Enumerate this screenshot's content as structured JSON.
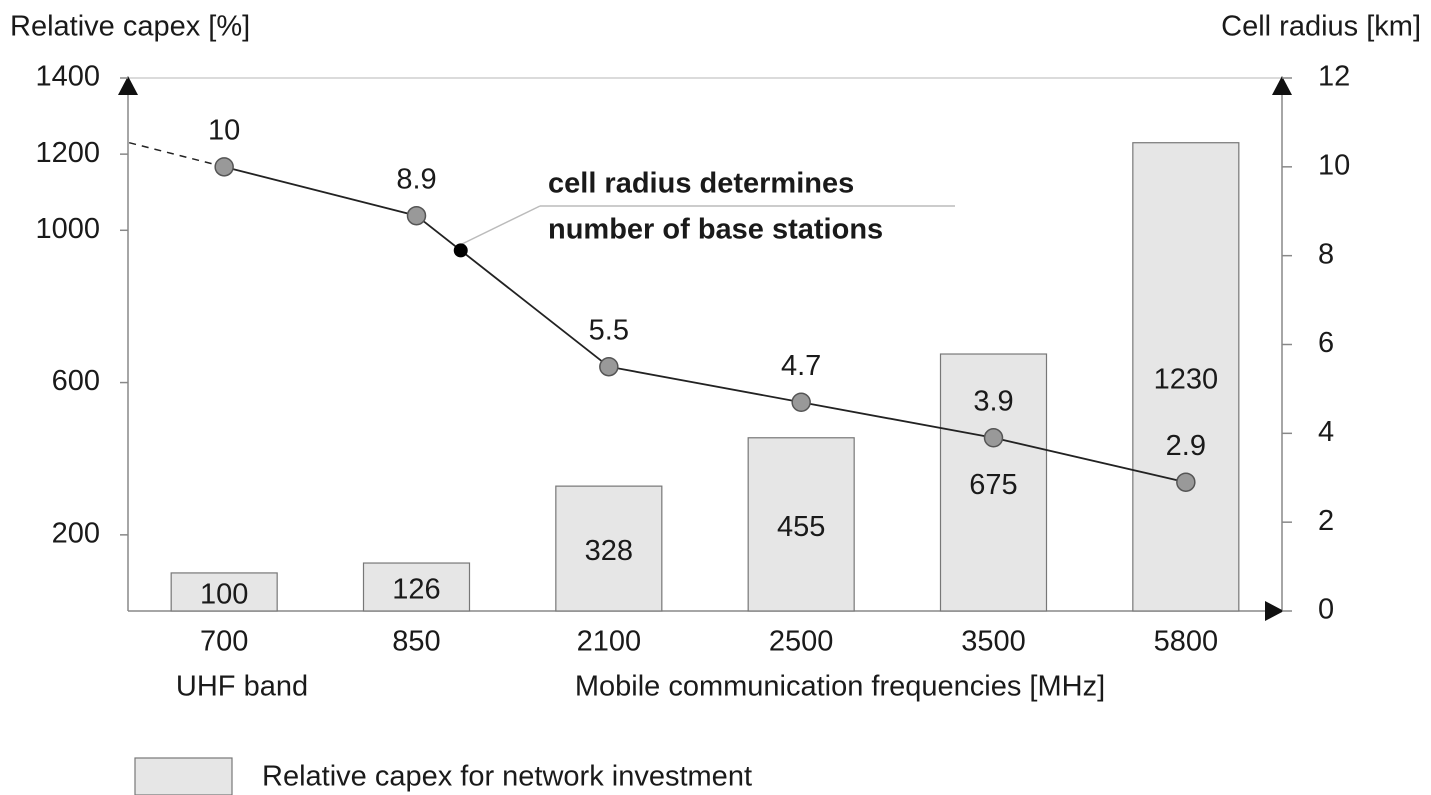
{
  "chart_data": {
    "type": "bar",
    "y_title": "Relative capex [%]",
    "y2_title": "Cell radius [km]",
    "x_title": "Mobile communication frequencies [MHz]",
    "x_group_label": "UHF band",
    "categories": [
      "700",
      "850",
      "2100",
      "2500",
      "3500",
      "5800"
    ],
    "series": [
      {
        "name": "Relative capex for network investment",
        "type": "bar",
        "color": "#e6e6e6",
        "values": [
          100,
          126,
          328,
          455,
          675,
          1230
        ]
      },
      {
        "type": "line",
        "axis": "y2",
        "color": "#999999",
        "values": [
          10,
          8.9,
          5.5,
          4.7,
          3.9,
          2.9
        ]
      }
    ],
    "annotation": [
      "cell radius determines",
      "number of base stations"
    ],
    "ylim": [
      0,
      1400
    ],
    "yticks": [
      200,
      600,
      1000,
      1200,
      1400
    ],
    "y2lim": [
      0,
      12
    ],
    "y2ticks": [
      0,
      2,
      4,
      6,
      8,
      10,
      12
    ],
    "legend": "bottom-left"
  }
}
